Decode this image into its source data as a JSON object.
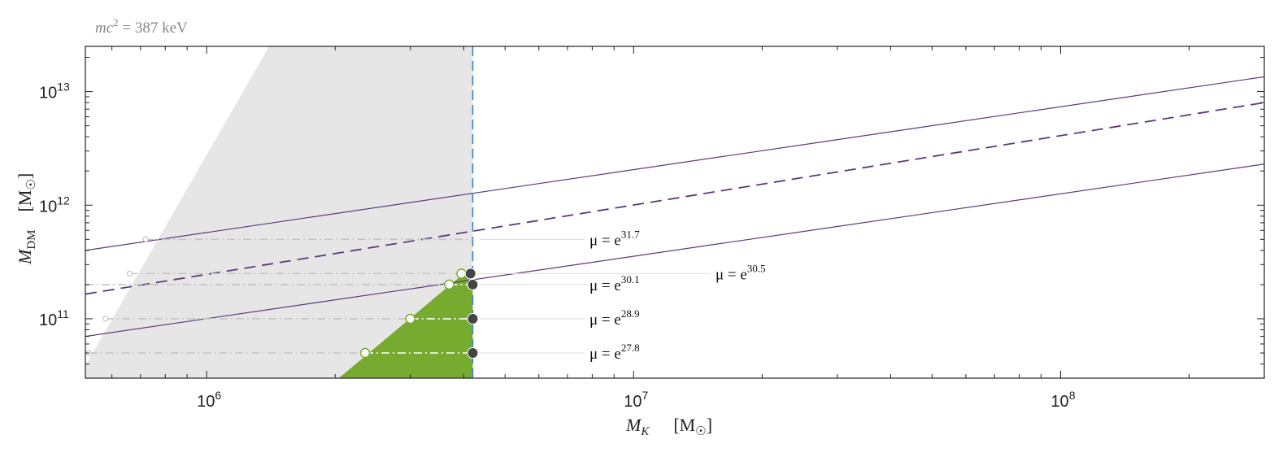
{
  "chart_data": {
    "type": "line",
    "caption": {
      "math": "mc",
      "sup": "2",
      "rest": " = 387 keV"
    },
    "xlabel": {
      "symbol": "M",
      "sub": "K",
      "unit": "[M",
      "unit_sub": "☉",
      "unit_close": "]"
    },
    "ylabel": {
      "symbol": "M",
      "sub": "DM",
      "unit": "[M",
      "unit_sub": "☉",
      "unit_close": "]"
    },
    "xscale": "log",
    "yscale": "log",
    "xlim": [
      520000,
      300000000
    ],
    "ylim": [
      30000000000,
      25000000000000
    ],
    "x_ticks": [
      {
        "value": 1000000,
        "base": "10",
        "exp": "6"
      },
      {
        "value": 10000000,
        "base": "10",
        "exp": "7"
      },
      {
        "value": 100000000,
        "base": "10",
        "exp": "8"
      }
    ],
    "y_ticks": [
      {
        "value": 100000000000,
        "base": "10",
        "exp": "11"
      },
      {
        "value": 1000000000000,
        "base": "10",
        "exp": "12"
      },
      {
        "value": 10000000000000,
        "base": "10",
        "exp": "13"
      }
    ],
    "colors": {
      "excluded_region": "#e6e6e6",
      "allowed_region": "#77ab2f",
      "relation_line": "#5b3a7d",
      "vertical_line": "#3a86c8",
      "dashdot": "#c4c4c4",
      "dashdot_inside": "#ffffff",
      "leader": "#dddddd",
      "dot_filled": "#444444",
      "dot_open_green": "#77ab2f",
      "dot_open_gray": "#bbbbbb"
    },
    "vertical_line_x": 4200000,
    "excluded_region_boundary": [
      [
        500000,
        30000000000
      ],
      [
        1400000,
        25000000000000
      ]
    ],
    "allowed_region_polygon": [
      [
        2040000,
        30000000000
      ],
      [
        4000000,
        250000000000
      ],
      [
        4200000,
        260000000000
      ],
      [
        4200000,
        30000000000
      ]
    ],
    "relation_lines": [
      {
        "style": "solid",
        "points": [
          [
            520000,
            400000000000
          ],
          [
            300000000,
            13500000000000
          ]
        ]
      },
      {
        "style": "dashed",
        "points": [
          [
            520000,
            165000000000
          ],
          [
            300000000,
            8000000000000
          ]
        ]
      },
      {
        "style": "solid",
        "points": [
          [
            520000,
            70000000000
          ],
          [
            300000000,
            2300000000000
          ]
        ]
      }
    ],
    "mu_levels": [
      {
        "mu_label": "μ = e",
        "exp": "31.7",
        "y": 500000000000,
        "x_open_gray": 720000,
        "x_open_green": null,
        "x_filled": null,
        "label_pos": "left"
      },
      {
        "mu_label": "μ = e",
        "exp": "30.5",
        "y": 250000000000,
        "x_open_gray": 660000,
        "x_open_green": 3950000,
        "x_filled": 4150000,
        "label_pos": "right"
      },
      {
        "mu_label": "μ = e",
        "exp": "30.1",
        "y": 200000000000,
        "x_open_gray": null,
        "x_open_green": 3700000,
        "x_filled": 4200000,
        "label_pos": "left"
      },
      {
        "mu_label": "μ = e",
        "exp": "28.9",
        "y": 100000000000,
        "x_open_gray": 580000,
        "x_open_green": 3000000,
        "x_filled": 4200000,
        "label_pos": "left"
      },
      {
        "mu_label": "μ = e",
        "exp": "27.8",
        "y": 50000000000,
        "x_open_gray": 530000,
        "x_open_green": 2350000,
        "x_filled": 4200000,
        "label_pos": "left"
      }
    ]
  }
}
